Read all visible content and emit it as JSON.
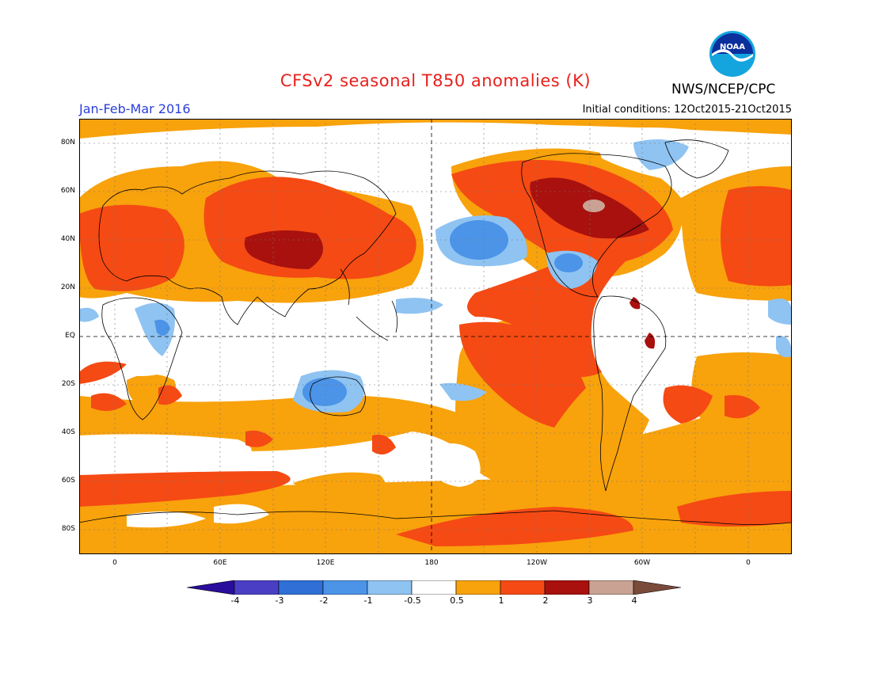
{
  "header": {
    "title": "CFSv2 seasonal T850 anomalies (K)",
    "organization": "NWS/NCEP/CPC",
    "logo_text": "NOAA",
    "period": "Jan-Feb-Mar 2016",
    "initial_conditions": "Initial conditions: 12Oct2015-21Oct2015"
  },
  "map": {
    "lat_labels": [
      "80N",
      "60N",
      "40N",
      "20N",
      "EQ",
      "20S",
      "40S",
      "60S",
      "80S"
    ],
    "lon_labels": [
      "0",
      "60E",
      "120E",
      "180",
      "120W",
      "60W",
      "0"
    ]
  },
  "colorbar": {
    "labels": [
      "-4",
      "-3",
      "-2",
      "-1",
      "-0.5",
      "0.5",
      "1",
      "2",
      "3",
      "4"
    ],
    "colors": [
      "#2a0d9c",
      "#4a3fc4",
      "#2f6fd6",
      "#4b94e8",
      "#8fc3f2",
      "#ffffff",
      "#f8a20c",
      "#f54a14",
      "#a8110e",
      "#c9a293",
      "#7a4a3a"
    ]
  }
}
